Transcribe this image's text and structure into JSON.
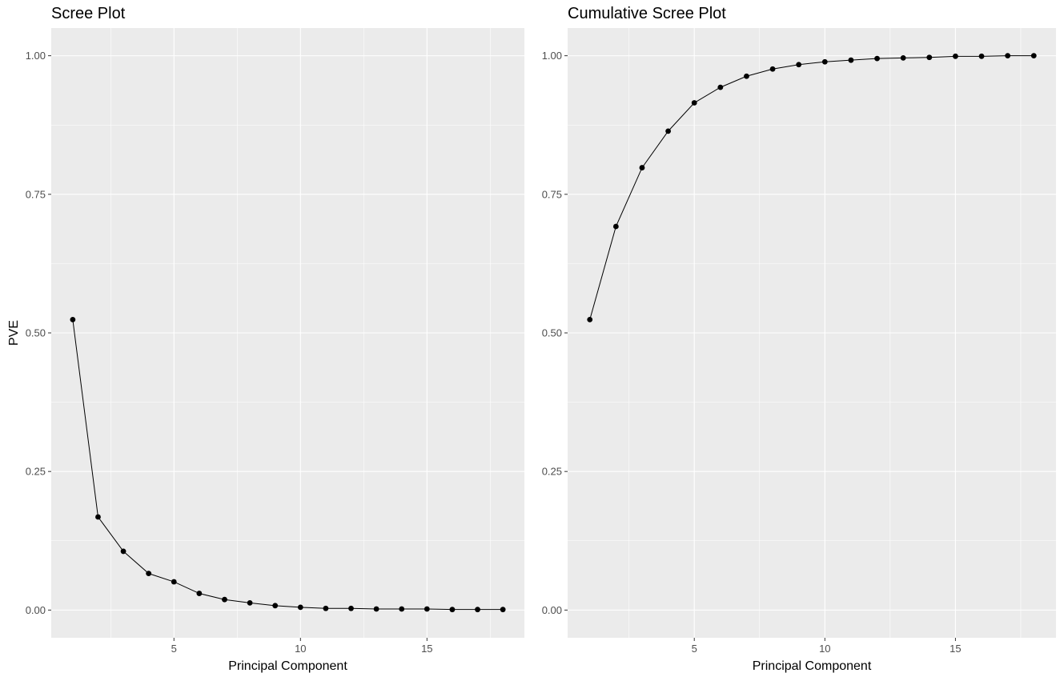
{
  "chart_data": [
    {
      "type": "line",
      "title": "Scree Plot",
      "xlabel": "Principal Component",
      "ylabel": "PVE",
      "xlim": [
        0.15,
        18.85
      ],
      "ylim": [
        -0.05,
        1.05
      ],
      "x_ticks": [
        5,
        10,
        15
      ],
      "y_ticks": [
        0.0,
        0.25,
        0.5,
        0.75,
        1.0
      ],
      "x_tick_labels": [
        "5",
        "10",
        "15"
      ],
      "y_tick_labels": [
        "0.00",
        "0.25",
        "0.50",
        "0.75",
        "1.00"
      ],
      "grid": true,
      "x": [
        1,
        2,
        3,
        4,
        5,
        6,
        7,
        8,
        9,
        10,
        11,
        12,
        13,
        14,
        15,
        16,
        17,
        18
      ],
      "values": [
        0.524,
        0.168,
        0.106,
        0.066,
        0.051,
        0.03,
        0.019,
        0.013,
        0.008,
        0.005,
        0.003,
        0.003,
        0.002,
        0.002,
        0.002,
        0.001,
        0.001,
        0.001
      ]
    },
    {
      "type": "line",
      "title": "Cumulative Scree Plot",
      "xlabel": "Principal Component",
      "ylabel": "",
      "xlim": [
        0.15,
        18.85
      ],
      "ylim": [
        -0.05,
        1.05
      ],
      "x_ticks": [
        5,
        10,
        15
      ],
      "y_ticks": [
        0.0,
        0.25,
        0.5,
        0.75,
        1.0
      ],
      "x_tick_labels": [
        "5",
        "10",
        "15"
      ],
      "y_tick_labels": [
        "0.00",
        "0.25",
        "0.50",
        "0.75",
        "1.00"
      ],
      "grid": true,
      "x": [
        1,
        2,
        3,
        4,
        5,
        6,
        7,
        8,
        9,
        10,
        11,
        12,
        13,
        14,
        15,
        16,
        17,
        18
      ],
      "values": [
        0.524,
        0.692,
        0.798,
        0.864,
        0.915,
        0.943,
        0.963,
        0.976,
        0.984,
        0.989,
        0.992,
        0.995,
        0.996,
        0.997,
        0.999,
        0.999,
        1.0,
        1.0
      ]
    }
  ]
}
